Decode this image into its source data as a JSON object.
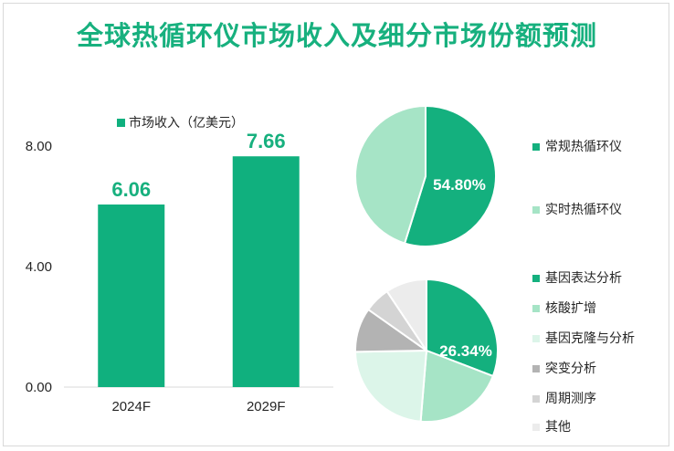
{
  "title": "全球热循环仪市场收入及细分市场份额预测",
  "colors": {
    "accent": "#17b07e",
    "bar": "#10b07e",
    "axis_text": "#262626"
  },
  "chart_data": [
    {
      "type": "bar",
      "legend": "市场收入（亿美元）",
      "categories": [
        "2024F",
        "2029F"
      ],
      "values": [
        6.06,
        7.66
      ],
      "value_labels": [
        "6.06",
        "7.66"
      ],
      "y_ticks": [
        "0.00",
        "4.00",
        "8.00"
      ],
      "ylim": [
        0,
        8
      ]
    },
    {
      "type": "pie",
      "slices": [
        {
          "name": "常规热循环仪",
          "value": 54.8,
          "color": "#14b07e"
        },
        {
          "name": "实时热循环仪",
          "value": 45.2,
          "color": "#a6e4c6"
        }
      ],
      "label": "54.80%"
    },
    {
      "type": "pie",
      "slices": [
        {
          "name": "基因表达分析",
          "value": 26.34,
          "color": "#14b07e"
        },
        {
          "name": "核酸扩增",
          "value": 17.5,
          "color": "#a6e4c6"
        },
        {
          "name": "基因克隆与分析",
          "value": 20.0,
          "color": "#dcf5e9"
        },
        {
          "name": "突变分析",
          "value": 8.6,
          "color": "#b3b3b3"
        },
        {
          "name": "周期测序",
          "value": 5.0,
          "color": "#d4d4d4"
        },
        {
          "name": "其他",
          "value": 8.0,
          "color": "#ececec"
        }
      ],
      "label": "26.34%"
    }
  ]
}
